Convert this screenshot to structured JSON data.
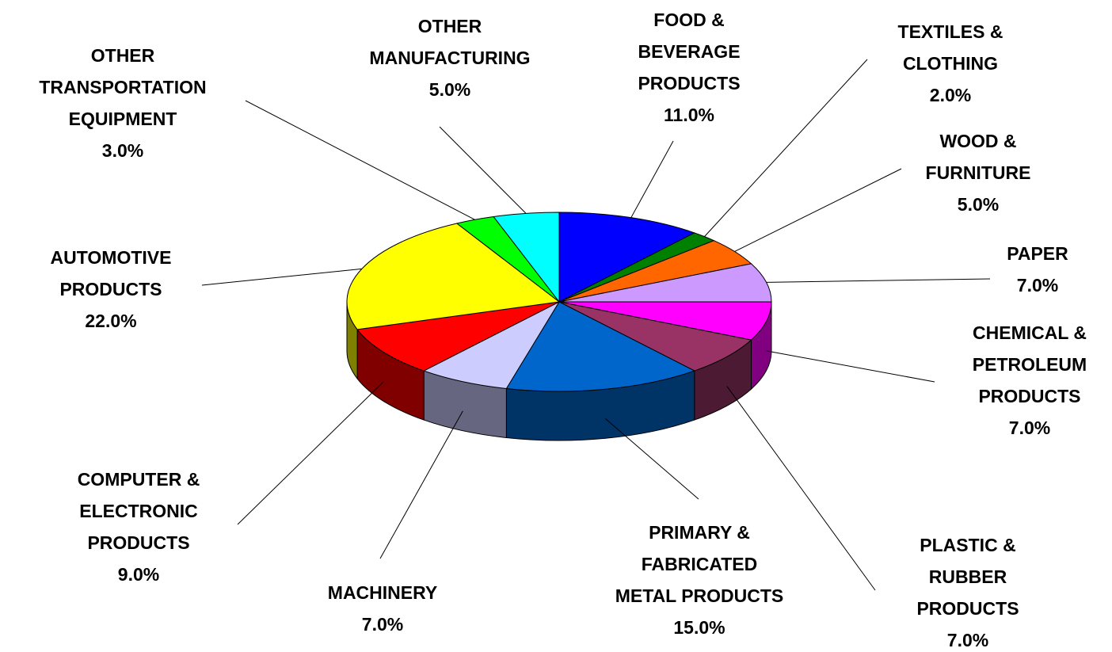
{
  "chart_data": {
    "type": "pie",
    "categories": [
      "FOOD &\nBEVERAGE\nPRODUCTS",
      "TEXTILES &\nCLOTHING",
      "WOOD &\nFURNITURE",
      "PAPER",
      "CHEMICAL &\nPETROLEUM\nPRODUCTS",
      "PLASTIC &\nRUBBER\nPRODUCTS",
      "PRIMARY &\nFABRICATED\nMETAL PRODUCTS",
      "MACHINERY",
      "COMPUTER &\nELECTRONIC\nPRODUCTS",
      "AUTOMOTIVE\nPRODUCTS",
      "OTHER\nTRANSPORTATION\nEQUIPMENT",
      "OTHER\nMANUFACTURING"
    ],
    "values": [
      11,
      2,
      5,
      7,
      7,
      7,
      15,
      7,
      9,
      22,
      3,
      5
    ],
    "value_labels": [
      "11.0%",
      "2.0%",
      "5.0%",
      "7.0%",
      "7.0%",
      "7.0%",
      "15.0%",
      "7.0%",
      "9.0%",
      "22.0%",
      "3.0%",
      "5.0%"
    ],
    "colors": [
      "#0000ff",
      "#008000",
      "#ff6600",
      "#cc99ff",
      "#ff00ff",
      "#993366",
      "#0066cc",
      "#ccccff",
      "#ff0000",
      "#ffff00",
      "#00ff00",
      "#00ffff"
    ]
  }
}
